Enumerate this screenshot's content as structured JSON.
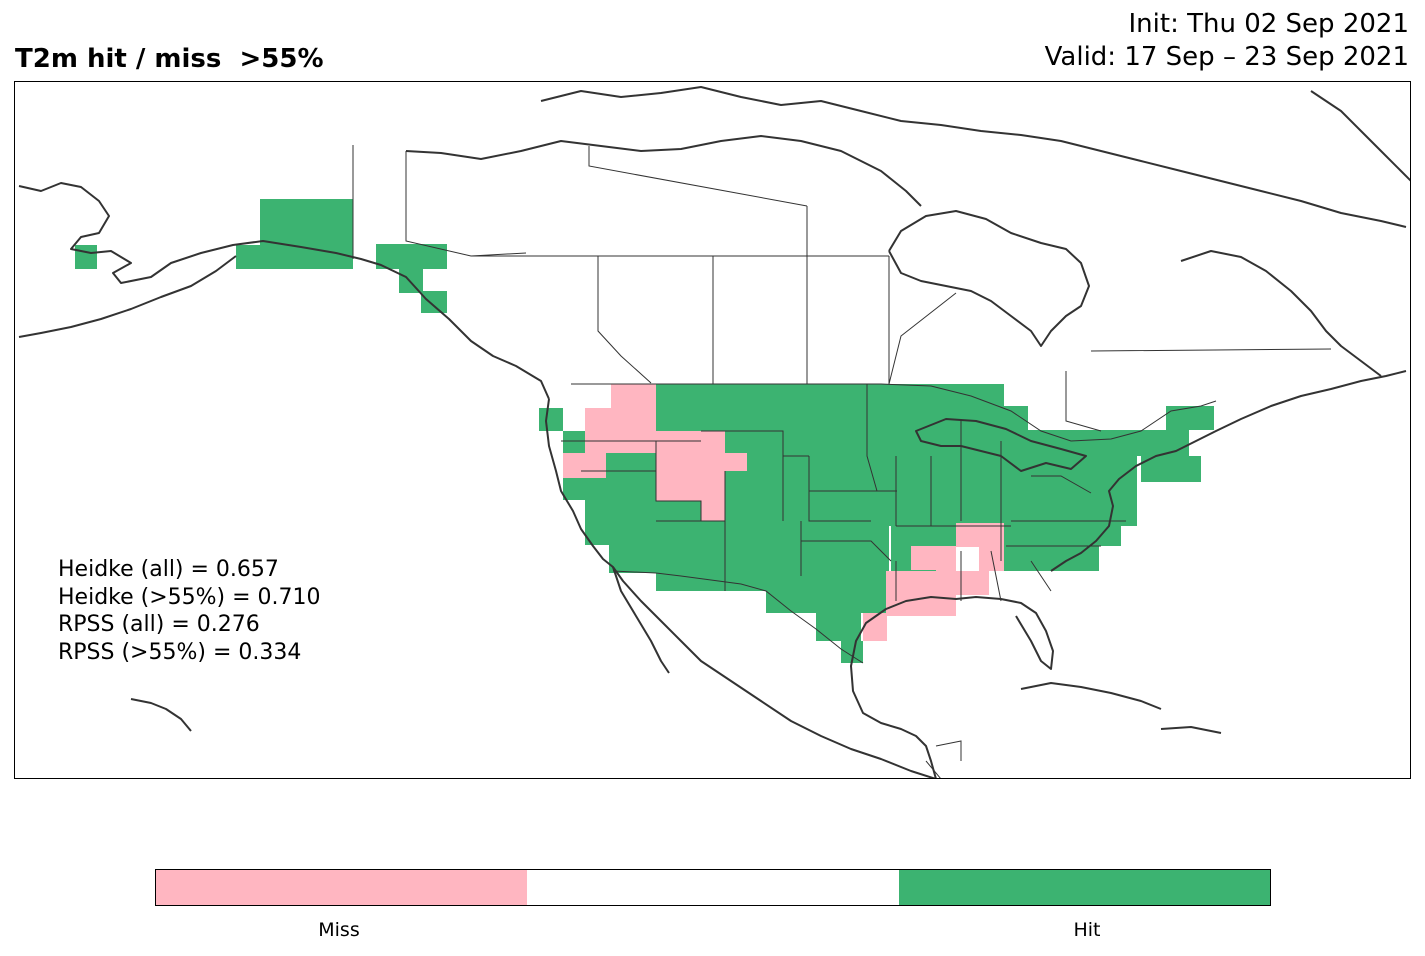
{
  "header": {
    "title": "T2m hit / miss  >55%",
    "init": "Init: Thu 02 Sep 2021",
    "valid": "Valid: 17 Sep – 23 Sep 2021"
  },
  "stats": [
    "Heidke (all) = 0.657",
    "Heidke (>55%) = 0.710",
    "RPSS (all) = 0.276",
    "RPSS (>55%) = 0.334"
  ],
  "legend": {
    "colors": {
      "miss": "#ffb6c1",
      "neutral": "#ffffff",
      "hit": "#3cb371"
    },
    "miss_label": "Miss",
    "hit_label": "Hit"
  },
  "colors": {
    "hit": "#3cb371",
    "miss": "#ffb6c1",
    "coastline": "#333333",
    "border": "#000000"
  }
}
